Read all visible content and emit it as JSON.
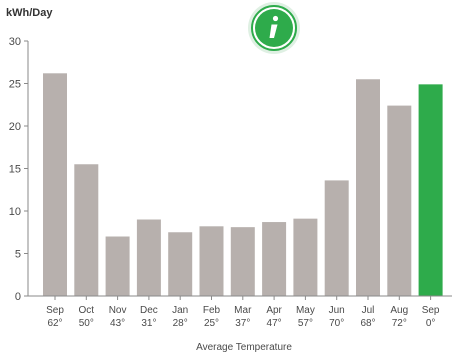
{
  "chart_data": {
    "type": "bar",
    "title": "",
    "ylabel": "kWh/Day",
    "xlabel": "Average Temperature",
    "ylim": [
      0,
      30
    ],
    "yticks": [
      "0",
      "5",
      "10",
      "15",
      "20",
      "25",
      "30"
    ],
    "grid": false,
    "categories": [
      {
        "month": "Sep",
        "temp": "62°"
      },
      {
        "month": "Oct",
        "temp": "50°"
      },
      {
        "month": "Nov",
        "temp": "43°"
      },
      {
        "month": "Dec",
        "temp": "31°"
      },
      {
        "month": "Jan",
        "temp": "28°"
      },
      {
        "month": "Feb",
        "temp": "25°"
      },
      {
        "month": "Mar",
        "temp": "37°"
      },
      {
        "month": "Apr",
        "temp": "47°"
      },
      {
        "month": "May",
        "temp": "57°"
      },
      {
        "month": "Jun",
        "temp": "70°"
      },
      {
        "month": "Jul",
        "temp": "68°"
      },
      {
        "month": "Aug",
        "temp": "72°"
      },
      {
        "month": "Sep",
        "temp": "0°"
      }
    ],
    "values": [
      26.2,
      15.5,
      7.0,
      9.0,
      7.5,
      8.2,
      8.1,
      8.7,
      9.1,
      13.6,
      25.5,
      22.4,
      24.9
    ],
    "highlight_index": 12,
    "colors": {
      "bar": "#b7b0ad",
      "highlight": "#2eab4b",
      "axis": "#8a8a8a",
      "text": "#4a4a4a",
      "info_icon_bg": "#2eab4b",
      "info_icon_fg": "#ffffff"
    },
    "info_icon": "info-icon"
  }
}
